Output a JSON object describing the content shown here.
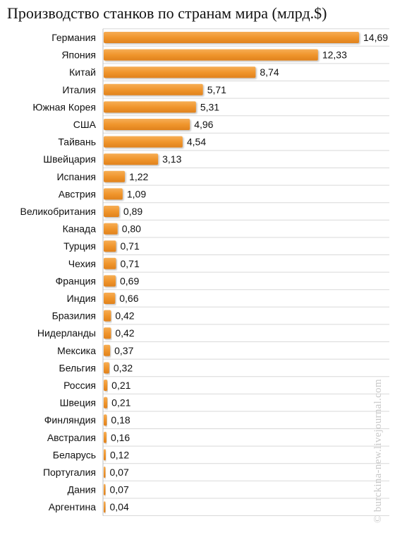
{
  "chart_data": {
    "type": "bar",
    "orientation": "horizontal",
    "title": "Производство станков по странам мира (млрд.$)",
    "categories": [
      "Германия",
      "Япония",
      "Китай",
      "Италия",
      "Южная Корея",
      "США",
      "Тайвань",
      "Швейцария",
      "Испания",
      "Австрия",
      "Великобритания",
      "Канада",
      "Турция",
      "Чехия",
      "Франция",
      "Индия",
      "Бразилия",
      "Нидерланды",
      "Мексика",
      "Бельгия",
      "Россия",
      "Швеция",
      "Финляндия",
      "Австралия",
      "Беларусь",
      "Португалия",
      "Дания",
      "Аргентина"
    ],
    "values": [
      14.69,
      12.33,
      8.74,
      5.71,
      5.31,
      4.96,
      4.54,
      3.13,
      1.22,
      1.09,
      0.89,
      0.8,
      0.71,
      0.71,
      0.69,
      0.66,
      0.42,
      0.42,
      0.37,
      0.32,
      0.21,
      0.21,
      0.18,
      0.16,
      0.12,
      0.07,
      0.07,
      0.04
    ],
    "value_labels": [
      "14,69",
      "12,33",
      "8,74",
      "5,71",
      "5,31",
      "4,96",
      "4,54",
      "3,13",
      "1,22",
      "1,09",
      "0,89",
      "0,80",
      "0,71",
      "0,71",
      "0,69",
      "0,66",
      "0,42",
      "0,42",
      "0,37",
      "0,32",
      "0,21",
      "0,21",
      "0,18",
      "0,16",
      "0,12",
      "0,07",
      "0,07",
      "0,04"
    ],
    "xlim": [
      0,
      14.69
    ],
    "grid": true,
    "bar_color": "#F0962D",
    "grid_color": "#d9d9d9"
  },
  "watermark": "© burckina-new.livejournal.com"
}
